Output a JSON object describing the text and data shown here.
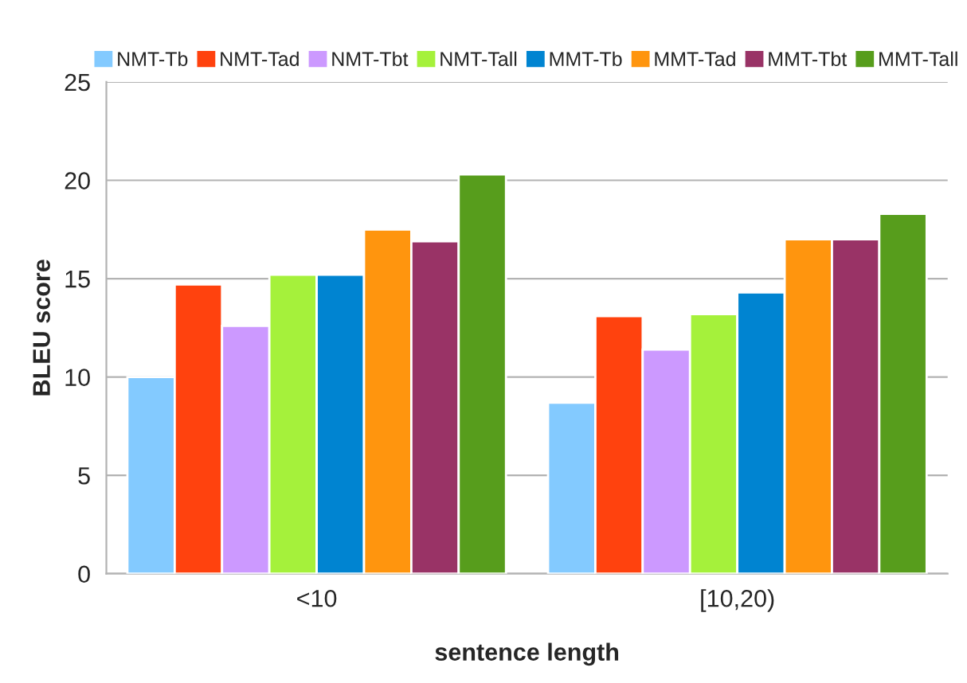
{
  "chart_data": {
    "type": "bar",
    "xlabel": "sentence length",
    "ylabel": "BLEU score",
    "categories": [
      "<10",
      "[10,20)"
    ],
    "series": [
      {
        "name": "NMT-Tb",
        "color": "#83caff",
        "values": [
          10.0,
          8.7
        ]
      },
      {
        "name": "NMT-Tad",
        "color": "#ff420e",
        "values": [
          14.7,
          13.1
        ]
      },
      {
        "name": "NMT-Tbt",
        "color": "#cc99ff",
        "values": [
          12.6,
          11.4
        ]
      },
      {
        "name": "NMT-Tall",
        "color": "#a5f13b",
        "values": [
          15.2,
          13.2
        ]
      },
      {
        "name": "MMT-Tb",
        "color": "#0084d1",
        "values": [
          15.2,
          14.3
        ]
      },
      {
        "name": "MMT-Tad",
        "color": "#ff950e",
        "values": [
          17.5,
          17.0
        ]
      },
      {
        "name": "MMT-Tbt",
        "color": "#993366",
        "values": [
          16.9,
          17.0
        ]
      },
      {
        "name": "MMT-Tall",
        "color": "#579d1c",
        "values": [
          20.3,
          18.3
        ]
      }
    ],
    "ylim": [
      0,
      25
    ],
    "yticks": [
      0,
      5,
      10,
      15,
      20,
      25
    ],
    "grid": "y",
    "legend": "top"
  }
}
